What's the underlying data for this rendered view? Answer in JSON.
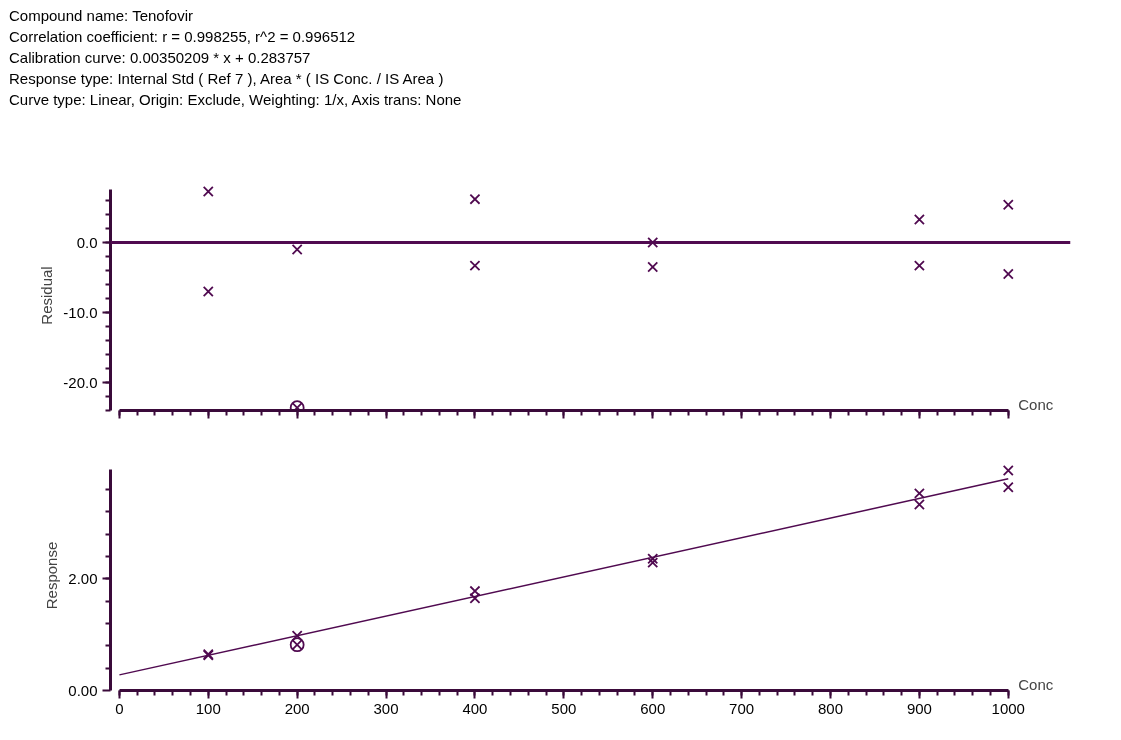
{
  "chart_data": [
    {
      "type": "scatter",
      "annotations": [
        "Compound name: Tenofovir",
        "Correlation coefficient: r = 0.998255, r^2 = 0.996512",
        "Calibration curve: 0.00350209 * x + 0.283757",
        "Response type: Internal Std ( Ref 7 ), Area * ( IS Conc. / IS Area )",
        "Curve type: Linear, Origin: Exclude, Weighting: 1/x, Axis trans: None"
      ],
      "xlabel": "Conc",
      "ylabel": "Residual",
      "xlim": [
        0,
        1000
      ],
      "ylim": [
        -24,
        7.6
      ],
      "xticks": [
        {
          "value": 0,
          "label": null
        },
        {
          "value": 100,
          "label": null
        },
        {
          "value": 200,
          "label": null
        },
        {
          "value": 300,
          "label": null
        },
        {
          "value": 400,
          "label": null
        },
        {
          "value": 500,
          "label": null
        },
        {
          "value": 600,
          "label": null
        },
        {
          "value": 700,
          "label": null
        },
        {
          "value": 800,
          "label": null
        },
        {
          "value": 900,
          "label": null
        },
        {
          "value": 1000,
          "label": null
        }
      ],
      "yticks": [
        {
          "value": -20,
          "label": "-20.0"
        },
        {
          "value": -10,
          "label": "-10.0"
        },
        {
          "value": 0,
          "label": "0.0"
        }
      ],
      "tick_labels": "y",
      "grid": false,
      "ref_lines": [
        {
          "axis": "y",
          "value": 0,
          "color": "#500a50"
        }
      ],
      "series": [
        {
          "marker": "cross",
          "color": "#500a50",
          "x": [
            100,
            100,
            200,
            200,
            400,
            400,
            600,
            600,
            900,
            900,
            1000,
            1000
          ],
          "values": [
            7.3,
            -7.0,
            -1.0,
            -23.6,
            6.2,
            -3.3,
            0.0,
            -3.5,
            3.3,
            -3.3,
            5.4,
            -4.5
          ]
        },
        {
          "color": "#500a50",
          "x": [
            200
          ],
          "values": [
            -23.6
          ]
        }
      ]
    },
    {
      "type": "scatter",
      "xlabel": "Conc",
      "ylabel": "Response",
      "xlim": [
        0,
        1000
      ],
      "ylim": [
        0,
        3.96
      ],
      "xticks": [
        0,
        100,
        200,
        300,
        400,
        500,
        600,
        700,
        800,
        900,
        1000
      ],
      "yticks": [
        {
          "value": 0,
          "label": "0.00"
        },
        {
          "value": 2,
          "label": "2.00"
        }
      ],
      "grid": false,
      "series": [
        {
          "marker": "cross",
          "color": "#500a50",
          "x": [
            100,
            100,
            200,
            200,
            400,
            400,
            600,
            600,
            900,
            900,
            1000,
            1000
          ],
          "values": [
            0.63,
            0.65,
            0.98,
            0.82,
            1.78,
            1.65,
            2.36,
            2.29,
            3.53,
            3.33,
            3.94,
            3.64
          ]
        },
        {
          "color": "#500a50",
          "x": [
            200
          ],
          "values": [
            0.82
          ]
        },
        {
          "type": "line",
          "color": "#500a50",
          "x": [
            0,
            1000
          ],
          "values": [
            0.28,
            3.79
          ]
        }
      ]
    }
  ]
}
